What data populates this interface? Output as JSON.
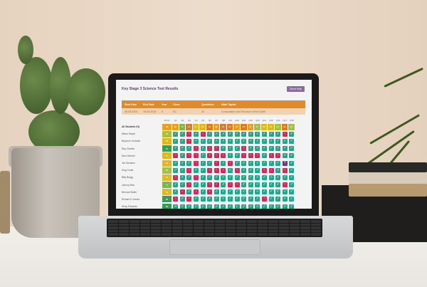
{
  "app": {
    "title": "Key Stage 3 Science Test Results",
    "show_help": "Show Help"
  },
  "info": {
    "headers": [
      "Start Date",
      "End Date",
      "Year",
      "Class",
      "Questions",
      "Main Topics"
    ],
    "values": [
      "06-05-2015",
      "16-05-2015",
      "9",
      "SC",
      "20",
      "Composition and Structure of the Earth"
    ]
  },
  "columns": [
    "All Qs",
    "Q1",
    "Q2",
    "Q3",
    "Q4",
    "Q5",
    "Q6",
    "Q7",
    "Q8",
    "Q9",
    "Q10",
    "Q11",
    "Q12",
    "Q13",
    "Q14",
    "Q15",
    "Q16",
    "Q17",
    "Q18"
  ],
  "summary": {
    "label": "All Students (%)",
    "all": "48",
    "values": [
      "46",
      "75",
      "21",
      "57",
      "52",
      "23",
      "43",
      "34",
      "26",
      "37",
      "29",
      "37",
      "61",
      "50",
      "54",
      "61",
      "29",
      "64"
    ]
  },
  "students": [
    {
      "name": "Alison Moyet",
      "all": "69",
      "marks": "TTXTXTTTTTTTTTTTXT"
    },
    {
      "name": "Beyonce Knowles",
      "all": "55",
      "marks": "TTXTTTTTTTTTTTTTTT"
    },
    {
      "name": "Ray Charles",
      "all": "94",
      "marks": "TTTXTXXTTTXTTTTTTT"
    },
    {
      "name": "Nina Simone",
      "all": "57",
      "marks": "XTXXTXXXTTXXXTXXTT"
    },
    {
      "name": "Jim Morrison",
      "all": "51",
      "marks": "TTTXTTXTXTTTTTTTPT"
    },
    {
      "name": "King Curtis",
      "all": "66",
      "marks": "TTXTTXXXTXTTTXXTXT"
    },
    {
      "name": "Billy Bragg",
      "all": "54",
      "marks": "XTTXTTTTTTTTTTTTTT"
    },
    {
      "name": "Johnny Marr",
      "all": "77",
      "marks": "TTXTTXXTXXTTTTTTXT"
    },
    {
      "name": "Bernard Butler",
      "all": "54",
      "marks": "TXTXTXTTTTTTTTTTTT"
    },
    {
      "name": "Richard D James",
      "all": "86",
      "marks": "XTXTTTTTTTTTTXTTTT"
    },
    {
      "name": "Ricky Edwards",
      "all": "89",
      "marks": "TTTTTTTTTTTTTTTTTT"
    }
  ],
  "colors": {
    "tick": "#1fa88a",
    "cross": "#d8285a",
    "purple": "#6a3a8a",
    "orange": "#e08a2a",
    "purple_button": "#8a6aa0"
  }
}
